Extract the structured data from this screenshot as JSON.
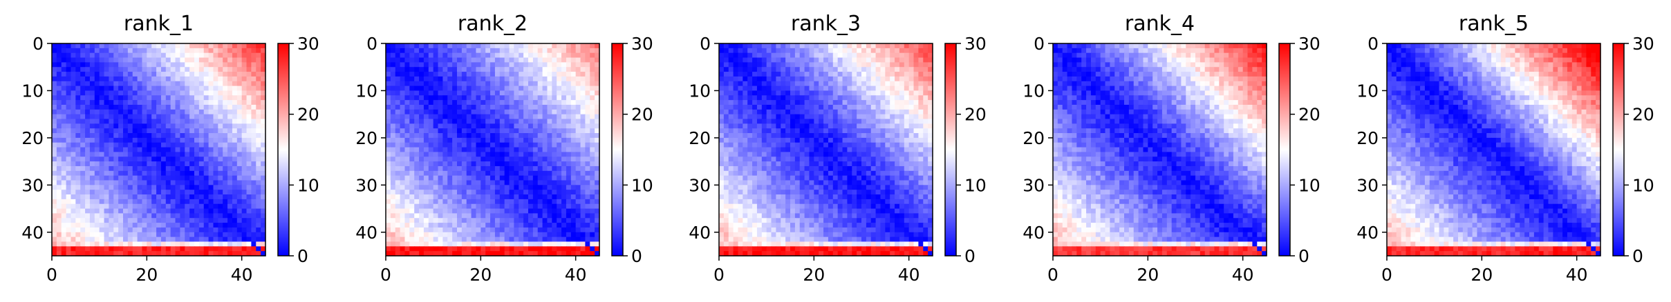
{
  "chart_data": {
    "type": "heatmap",
    "colormap": "bwr",
    "colormap_stops": [
      "#0000ff",
      "#ffffff",
      "#ff0000"
    ],
    "grid": false,
    "grid_size": 45,
    "matrix_description": "distance-like matrix: near 0 along the diagonal, values rising away from it; strongest in the top-right block (first rows vs last columns) and the bottom rows 43-44 which are red across all columns",
    "x_ticks": [
      "0",
      "20",
      "40"
    ],
    "x_tick_values": [
      0,
      20,
      40
    ],
    "y_ticks": [
      "0",
      "10",
      "20",
      "30",
      "40"
    ],
    "y_tick_values": [
      0,
      10,
      20,
      30,
      40
    ],
    "xlim": [
      0,
      45
    ],
    "ylim": [
      45,
      0
    ],
    "colorbar": {
      "vmin": 0,
      "vmax": 30,
      "ticks": [
        "0",
        "10",
        "20",
        "30"
      ],
      "tick_values": [
        0,
        10,
        20,
        30
      ]
    },
    "panels": [
      {
        "title": "rank_1",
        "top_right_level": 22,
        "bottom_rows_level": 28,
        "seed": 11
      },
      {
        "title": "rank_2",
        "top_right_level": 18,
        "bottom_rows_level": 29,
        "seed": 23
      },
      {
        "title": "rank_3",
        "top_right_level": 21,
        "bottom_rows_level": 29,
        "seed": 37
      },
      {
        "title": "rank_4",
        "top_right_level": 24,
        "bottom_rows_level": 27,
        "seed": 41
      },
      {
        "title": "rank_5",
        "top_right_level": 27,
        "bottom_rows_level": 28,
        "seed": 53
      }
    ]
  }
}
